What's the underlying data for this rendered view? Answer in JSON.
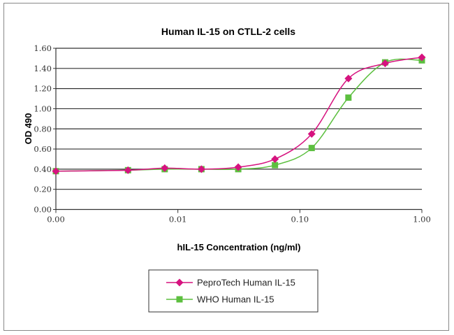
{
  "chart_data": {
    "type": "line",
    "title": "Human IL-15 on CTLL-2 cells",
    "xlabel": "hIL-15 Concentration (ng/ml)",
    "ylabel": "OD 490",
    "x_scale": "log",
    "xlim": [
      0.001,
      1
    ],
    "ylim": [
      0,
      1.6
    ],
    "x_ticks": [
      0.001,
      0.01,
      0.1,
      1
    ],
    "x_tick_labels": [
      "0.00",
      "0.01",
      "0.10",
      "1.00"
    ],
    "y_ticks": [
      0,
      0.2,
      0.4,
      0.6,
      0.8,
      1.0,
      1.2,
      1.4,
      1.6
    ],
    "y_tick_labels": [
      "0.00",
      "0.20",
      "0.40",
      "0.60",
      "0.80",
      "1.00",
      "1.20",
      "1.40",
      "1.60"
    ],
    "grid": "horizontal",
    "legend_position": "bottom-center",
    "x": [
      0.001,
      0.0039,
      0.0078,
      0.0156,
      0.03125,
      0.0625,
      0.125,
      0.25,
      0.5,
      1
    ],
    "series": [
      {
        "name": "PeproTech Human IL-15",
        "color": "#d6137f",
        "marker": "diamond",
        "values": [
          0.38,
          0.39,
          0.41,
          0.4,
          0.42,
          0.5,
          0.75,
          1.3,
          1.45,
          1.51
        ]
      },
      {
        "name": "WHO Human IL-15",
        "color": "#5cbf3f",
        "marker": "square",
        "values": [
          0.38,
          0.39,
          0.4,
          0.4,
          0.4,
          0.44,
          0.61,
          1.11,
          1.46,
          1.48
        ]
      }
    ]
  }
}
